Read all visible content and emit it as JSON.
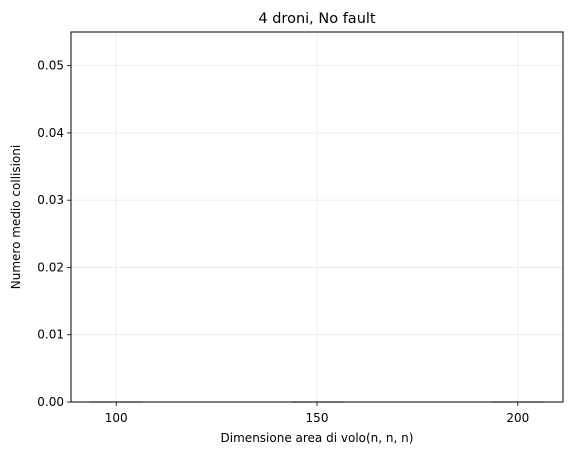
{
  "chart_data": {
    "type": "bar",
    "title": "4 droni, No fault",
    "xlabel": "Dimensione area di volo(n, n, n)",
    "ylabel": "Numero medio collisioni",
    "categories": [
      "100",
      "150",
      "200"
    ],
    "x": [
      100,
      150,
      200
    ],
    "values": [
      0.0,
      0.0,
      0.0
    ],
    "ylim": [
      0,
      0.055
    ],
    "xlim": [
      88.75,
      211.25
    ],
    "yticks": [
      0.0,
      0.01,
      0.02,
      0.03,
      0.04,
      0.05
    ],
    "ytick_labels": [
      "0.00",
      "0.01",
      "0.02",
      "0.03",
      "0.04",
      "0.05"
    ],
    "grid": true,
    "colors": {
      "bar": "#1f77b4",
      "grid": "#e8e8e8",
      "axis": "#000000"
    }
  }
}
